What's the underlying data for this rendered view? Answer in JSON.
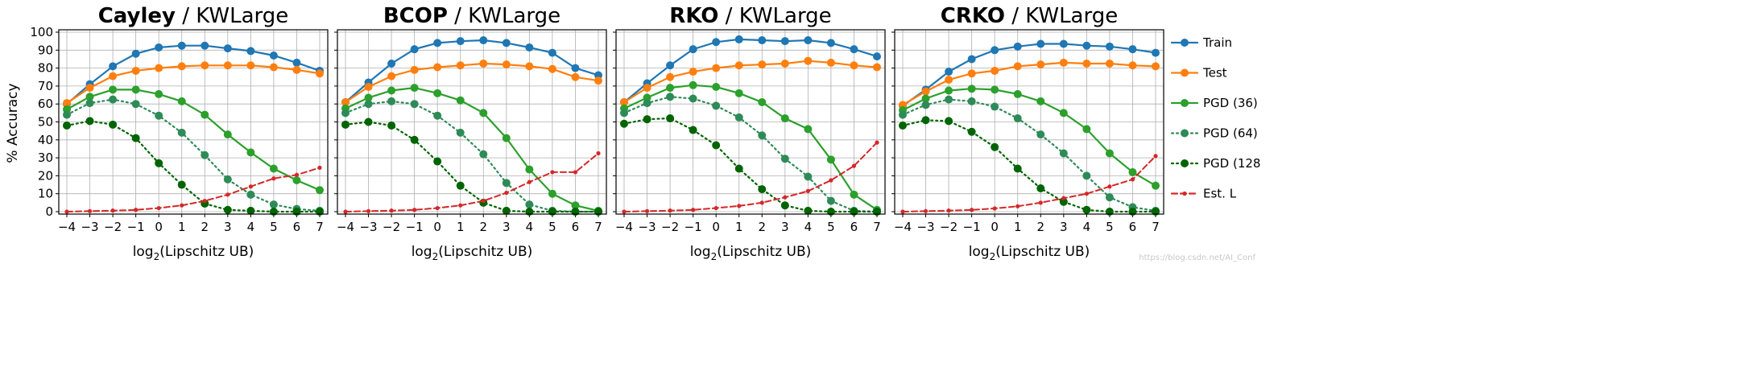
{
  "figure": {
    "ylabel": "% Accuracy",
    "xlabel_prefix": "log",
    "xlabel_sub": "2",
    "xlabel_suffix": "(Lipschitz UB)",
    "watermark": "https://blog.csdn.net/AI_Conf"
  },
  "colors": {
    "train": "#1f77b4",
    "test": "#ff7f0e",
    "pgd36": "#2ca02c",
    "pgd64": "#2e8b57",
    "pgd128": "#006400",
    "estl": "#d62728"
  },
  "legend": [
    {
      "label": "Train",
      "key": "train",
      "dash": "solid"
    },
    {
      "label": "Test",
      "key": "test",
      "dash": "solid"
    },
    {
      "label": "PGD (36)",
      "key": "pgd36",
      "dash": "solid"
    },
    {
      "label": "PGD (64)",
      "key": "pgd64",
      "dash": "dotted"
    },
    {
      "label": "PGD (128)",
      "key": "pgd128",
      "dash": "dotted"
    },
    {
      "label": "Est. L",
      "key": "estl",
      "dash": "dashed"
    }
  ],
  "chart_data": [
    {
      "type": "line",
      "title_bold": "Cayley",
      "title_rest": " / KWLarge",
      "x": [
        -4,
        -3,
        -2,
        -1,
        0,
        1,
        2,
        3,
        4,
        5,
        6,
        7
      ],
      "xticks": [
        "−4",
        "−3",
        "−2",
        "−1",
        "0",
        "1",
        "2",
        "3",
        "4",
        "5",
        "6",
        "7"
      ],
      "ylim": [
        0,
        100
      ],
      "yticks": [
        "0",
        "10",
        "20",
        "30",
        "40",
        "50",
        "60",
        "70",
        "80",
        "90",
        "100"
      ],
      "grid": true,
      "series": [
        {
          "name": "Train",
          "key": "train",
          "values": [
            60,
            71,
            81,
            88,
            91.5,
            92.5,
            92.5,
            91,
            89.5,
            87,
            83,
            78.5
          ]
        },
        {
          "name": "Test",
          "key": "test",
          "values": [
            60.5,
            69,
            75.5,
            78.5,
            80,
            81,
            81.5,
            81.5,
            81.5,
            80.5,
            79,
            77
          ]
        },
        {
          "name": "PGD (36)",
          "key": "pgd36",
          "values": [
            57,
            64,
            68,
            68,
            65.5,
            61.5,
            54,
            43,
            33,
            24,
            17.5,
            12
          ]
        },
        {
          "name": "PGD (64)",
          "key": "pgd64",
          "values": [
            54,
            60.5,
            62.5,
            60,
            53.5,
            44,
            31.5,
            18,
            9.5,
            4,
            1.5,
            0.5
          ]
        },
        {
          "name": "PGD (128)",
          "key": "pgd128",
          "values": [
            48,
            50.5,
            48.5,
            41,
            27,
            15,
            4.5,
            1,
            0.5,
            0,
            0,
            0
          ]
        },
        {
          "name": "Est. L",
          "key": "estl",
          "values": [
            0,
            0.3,
            0.6,
            1,
            2,
            3.5,
            6,
            9.5,
            14,
            18.5,
            20.5,
            24.5
          ]
        }
      ]
    },
    {
      "type": "line",
      "title_bold": "BCOP",
      "title_rest": " / KWLarge",
      "x": [
        -4,
        -3,
        -2,
        -1,
        0,
        1,
        2,
        3,
        4,
        5,
        6,
        7
      ],
      "xticks": [
        "−4",
        "−3",
        "−2",
        "−1",
        "0",
        "1",
        "2",
        "3",
        "4",
        "5",
        "6",
        "7"
      ],
      "ylim": [
        0,
        100
      ],
      "yticks": [
        "0",
        "10",
        "20",
        "30",
        "40",
        "50",
        "60",
        "70",
        "80",
        "90",
        "100"
      ],
      "grid": true,
      "series": [
        {
          "name": "Train",
          "key": "train",
          "values": [
            61,
            72,
            82.5,
            90.5,
            94,
            95,
            95.5,
            94,
            91.5,
            88.5,
            80,
            76
          ]
        },
        {
          "name": "Test",
          "key": "test",
          "values": [
            61,
            69.5,
            75.5,
            79,
            80.5,
            81.5,
            82.5,
            82,
            81,
            79.5,
            75,
            73
          ]
        },
        {
          "name": "PGD (36)",
          "key": "pgd36",
          "values": [
            57.5,
            63.5,
            67.5,
            69,
            66,
            62,
            55,
            41,
            23.5,
            10,
            3.5,
            0.5
          ]
        },
        {
          "name": "PGD (64)",
          "key": "pgd64",
          "values": [
            55,
            60,
            61.5,
            60,
            53.5,
            44,
            32,
            16,
            4,
            0.5,
            0,
            0
          ]
        },
        {
          "name": "PGD (128)",
          "key": "pgd128",
          "values": [
            48.5,
            50,
            48,
            40,
            28,
            14.5,
            5,
            0.5,
            0,
            0,
            0,
            0
          ]
        },
        {
          "name": "Est. L",
          "key": "estl",
          "values": [
            0,
            0.3,
            0.6,
            1,
            2,
            3.5,
            6,
            10.5,
            16.5,
            22,
            22,
            32.5
          ]
        }
      ]
    },
    {
      "type": "line",
      "title_bold": "RKO",
      "title_rest": " / KWLarge",
      "x": [
        -4,
        -3,
        -2,
        -1,
        0,
        1,
        2,
        3,
        4,
        5,
        6,
        7
      ],
      "xticks": [
        "−4",
        "−3",
        "−2",
        "−1",
        "0",
        "1",
        "2",
        "3",
        "4",
        "5",
        "6",
        "7"
      ],
      "ylim": [
        0,
        100
      ],
      "yticks": [
        "0",
        "10",
        "20",
        "30",
        "40",
        "50",
        "60",
        "70",
        "80",
        "90",
        "100"
      ],
      "grid": true,
      "series": [
        {
          "name": "Train",
          "key": "train",
          "values": [
            61,
            71.5,
            81.5,
            90.5,
            94.5,
            96,
            95.5,
            95,
            95.5,
            94,
            90.5,
            86.5
          ]
        },
        {
          "name": "Test",
          "key": "test",
          "values": [
            61,
            69,
            75,
            78,
            80,
            81.5,
            82,
            82.5,
            84,
            83,
            81.5,
            80.5
          ]
        },
        {
          "name": "PGD (36)",
          "key": "pgd36",
          "values": [
            57.5,
            63.5,
            69,
            70.5,
            69.5,
            66,
            61,
            52,
            46,
            29,
            9.5,
            1
          ]
        },
        {
          "name": "PGD (64)",
          "key": "pgd64",
          "values": [
            55,
            60.5,
            64,
            63,
            59,
            52.5,
            42.5,
            29.5,
            19.5,
            6,
            0.5,
            0
          ]
        },
        {
          "name": "PGD (128)",
          "key": "pgd128",
          "values": [
            49,
            51.5,
            52,
            45.5,
            37,
            24,
            12.5,
            3.5,
            0.5,
            0,
            0,
            0
          ]
        },
        {
          "name": "Est. L",
          "key": "estl",
          "values": [
            0,
            0.3,
            0.6,
            1,
            2,
            3.2,
            5,
            8,
            11.5,
            17.5,
            25.5,
            38.5
          ]
        }
      ]
    },
    {
      "type": "line",
      "title_bold": "CRKO",
      "title_rest": " / KWLarge",
      "x": [
        -4,
        -3,
        -2,
        -1,
        0,
        1,
        2,
        3,
        4,
        5,
        6,
        7
      ],
      "xticks": [
        "−4",
        "−3",
        "−2",
        "−1",
        "0",
        "1",
        "2",
        "3",
        "4",
        "5",
        "6",
        "7"
      ],
      "ylim": [
        0,
        100
      ],
      "yticks": [
        "0",
        "10",
        "20",
        "30",
        "40",
        "50",
        "60",
        "70",
        "80",
        "90",
        "100"
      ],
      "grid": true,
      "series": [
        {
          "name": "Train",
          "key": "train",
          "values": [
            59,
            68,
            78,
            85,
            90,
            92,
            93.5,
            93.5,
            92.5,
            92,
            90.5,
            88.5
          ]
        },
        {
          "name": "Test",
          "key": "test",
          "values": [
            59.5,
            67,
            73.5,
            77,
            78.5,
            81,
            82,
            83,
            82.5,
            82.5,
            81.5,
            81
          ]
        },
        {
          "name": "PGD (36)",
          "key": "pgd36",
          "values": [
            56.5,
            63,
            67.5,
            68.5,
            68,
            65.5,
            61.5,
            55,
            46,
            32.5,
            22,
            14.5
          ]
        },
        {
          "name": "PGD (64)",
          "key": "pgd64",
          "values": [
            54,
            59.5,
            62.5,
            61.5,
            58.5,
            52,
            43,
            32.5,
            20,
            8,
            2.5,
            0.5
          ]
        },
        {
          "name": "PGD (128)",
          "key": "pgd128",
          "values": [
            48,
            51,
            50.5,
            44.5,
            36,
            24,
            13,
            5.5,
            1,
            0,
            0,
            0
          ]
        },
        {
          "name": "Est. L",
          "key": "estl",
          "values": [
            0,
            0.3,
            0.6,
            1,
            1.8,
            3,
            5,
            7.5,
            10,
            14,
            18,
            31
          ]
        }
      ]
    }
  ]
}
